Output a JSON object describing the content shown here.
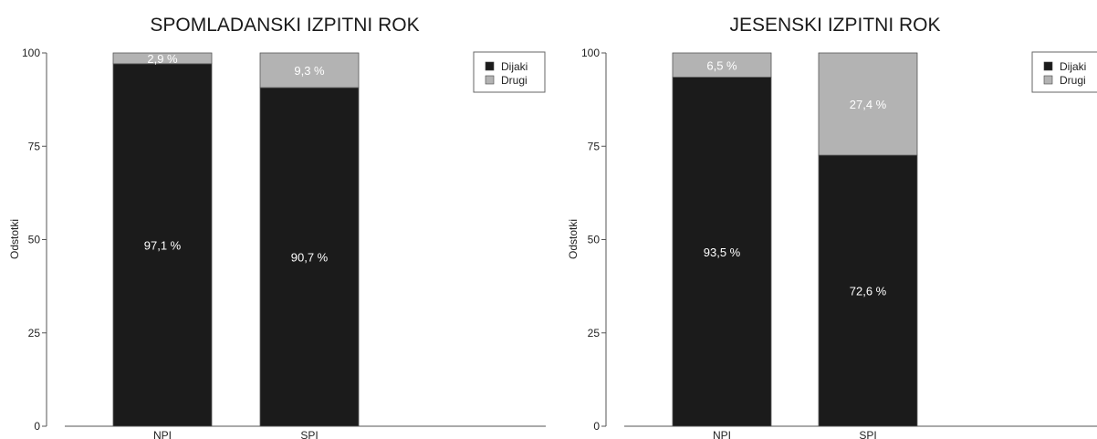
{
  "colors": {
    "dijaki": "#1b1b1b",
    "drugi": "#b3b3b3",
    "axis": "#555555"
  },
  "chart_data": [
    {
      "type": "bar",
      "stacked": true,
      "title": "SPOMLADANSKI IZPITNI ROK",
      "ylabel": "Odstotki",
      "ylim": [
        0,
        100
      ],
      "yticks": [
        0,
        25,
        50,
        75,
        100
      ],
      "categories": [
        "NPI",
        "SPI"
      ],
      "series": [
        {
          "name": "Dijaki",
          "values": [
            97.1,
            90.7
          ],
          "labels": [
            "97,1 %",
            "90,7 %"
          ]
        },
        {
          "name": "Drugi",
          "values": [
            2.9,
            9.3
          ],
          "labels": [
            "2,9 %",
            "9,3 %"
          ]
        }
      ],
      "legend": "top-right"
    },
    {
      "type": "bar",
      "stacked": true,
      "title": "JESENSKI IZPITNI ROK",
      "ylabel": "Odstotki",
      "ylim": [
        0,
        100
      ],
      "yticks": [
        0,
        25,
        50,
        75,
        100
      ],
      "categories": [
        "NPI",
        "SPI"
      ],
      "series": [
        {
          "name": "Dijaki",
          "values": [
            93.5,
            72.6
          ],
          "labels": [
            "93,5 %",
            "72,6 %"
          ]
        },
        {
          "name": "Drugi",
          "values": [
            6.5,
            27.4
          ],
          "labels": [
            "6,5 %",
            "27,4 %"
          ]
        }
      ],
      "legend": "top-right"
    }
  ]
}
